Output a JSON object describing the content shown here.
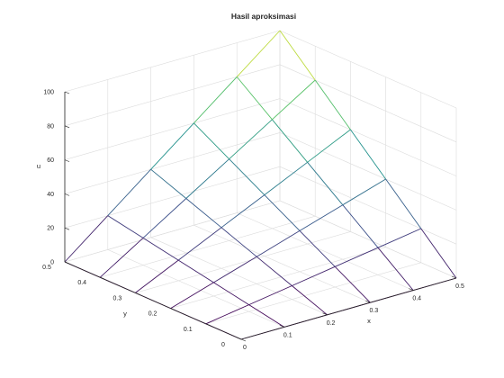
{
  "chart_data": {
    "type": "surface",
    "title": "Hasil aproksimasi",
    "xlabel": "x",
    "ylabel": "y",
    "zlabel": "u",
    "xlim": [
      0,
      0.5
    ],
    "ylim": [
      0,
      0.5
    ],
    "zlim": [
      0,
      100
    ],
    "xticks": [
      "0",
      "0.1",
      "0.2",
      "0.3",
      "0.4",
      "0.5"
    ],
    "yticks": [
      "0",
      "0.1",
      "0.2",
      "0.3",
      "0.4",
      "0.5"
    ],
    "zticks": [
      "0",
      "20",
      "40",
      "60",
      "80",
      "100"
    ],
    "grid": true,
    "colormap": [
      "#440154",
      "#3b528b",
      "#21918c",
      "#5ec962",
      "#fde725"
    ],
    "x": [
      0,
      0.1,
      0.2,
      0.3,
      0.4,
      0.5
    ],
    "y": [
      0,
      0.1,
      0.2,
      0.3,
      0.4,
      0.5
    ],
    "z": [
      [
        0,
        0,
        0,
        0,
        0,
        0
      ],
      [
        0,
        4,
        8,
        12,
        16,
        20
      ],
      [
        0,
        8,
        16,
        24,
        32,
        40
      ],
      [
        0,
        12,
        24,
        36,
        48,
        60
      ],
      [
        0,
        16,
        32,
        48,
        64,
        80
      ],
      [
        0,
        20,
        40,
        60,
        80,
        100
      ]
    ]
  }
}
